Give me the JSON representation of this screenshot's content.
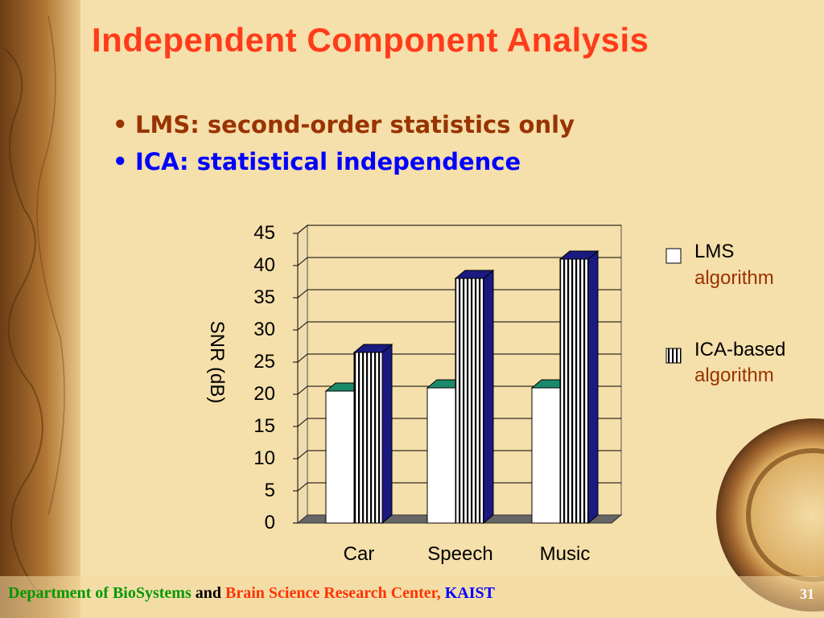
{
  "slide": {
    "title": "Independent Component Analysis",
    "bullets": [
      {
        "text": "LMS: second-order statistics only",
        "color": "#993300"
      },
      {
        "text": "ICA: statistical independence",
        "color": "#0000ff"
      }
    ],
    "bullet_symbol": "•",
    "footer": {
      "dept": "Department of BioSystems",
      "and": " and ",
      "center": "Brain Science Research Center,",
      "kaist": " KAIST"
    },
    "page_number": "31"
  },
  "chart_data": {
    "type": "bar",
    "categories": [
      "Car",
      "Speech",
      "Music"
    ],
    "series": [
      {
        "name": "LMS algorithm",
        "legend_lines": [
          "LMS",
          "algorithm"
        ],
        "values": [
          20.5,
          21,
          21
        ],
        "color": "#ffffff",
        "top_color": "#1a8a6a"
      },
      {
        "name": "ICA-based algorithm",
        "legend_lines": [
          "ICA-based",
          "algorithm"
        ],
        "values": [
          26.5,
          38,
          41
        ],
        "color": "#ffffff",
        "pattern": "vertical-stripes",
        "side_color": "#1a1a80"
      }
    ],
    "title": "",
    "xlabel": "",
    "ylabel": "SNR (dB)",
    "ylim": [
      0,
      45
    ],
    "yticks": [
      0,
      5,
      10,
      15,
      20,
      25,
      30,
      35,
      40,
      45
    ],
    "grid": true,
    "legend_position": "right"
  }
}
